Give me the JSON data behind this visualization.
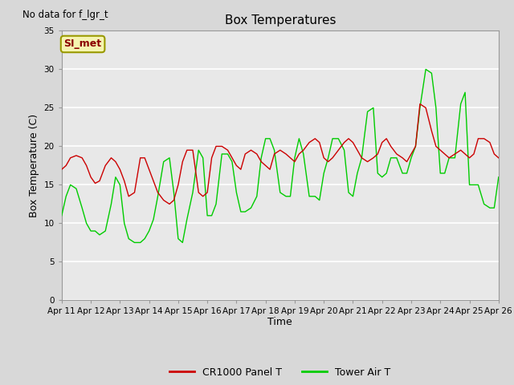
{
  "title": "Box Temperatures",
  "no_data_text": "No data for f_lgr_t",
  "station_label": "SI_met",
  "ylabel": "Box Temperature (C)",
  "xlabel": "Time",
  "ylim": [
    0,
    35
  ],
  "yticks": [
    0,
    5,
    10,
    15,
    20,
    25,
    30,
    35
  ],
  "x_labels": [
    "Apr 11",
    "Apr 12",
    "Apr 13",
    "Apr 14",
    "Apr 15",
    "Apr 16",
    "Apr 17",
    "Apr 18",
    "Apr 19",
    "Apr 20",
    "Apr 21",
    "Apr 22",
    "Apr 23",
    "Apr 24",
    "Apr 25",
    "Apr 26"
  ],
  "fig_bg_color": "#d8d8d8",
  "plot_bg_color": "#e8e8e8",
  "grid_color": "#ffffff",
  "legend_entries": [
    "CR1000 Panel T",
    "Tower Air T"
  ],
  "red_color": "#cc0000",
  "green_color": "#00cc00",
  "line_width": 1.0,
  "red_data_x": [
    0,
    0.15,
    0.3,
    0.5,
    0.7,
    0.85,
    1.0,
    1.15,
    1.3,
    1.5,
    1.7,
    1.85,
    2.0,
    2.15,
    2.3,
    2.5,
    2.7,
    2.85,
    3.0,
    3.15,
    3.3,
    3.5,
    3.7,
    3.85,
    4.0,
    4.15,
    4.3,
    4.5,
    4.7,
    4.85,
    5.0,
    5.15,
    5.3,
    5.5,
    5.7,
    5.85,
    6.0,
    6.15,
    6.3,
    6.5,
    6.7,
    6.85,
    7.0,
    7.15,
    7.3,
    7.5,
    7.7,
    7.85,
    8.0,
    8.15,
    8.3,
    8.5,
    8.7,
    8.85,
    9.0,
    9.15,
    9.3,
    9.5,
    9.7,
    9.85,
    10.0,
    10.15,
    10.3,
    10.5,
    10.7,
    10.85,
    11.0,
    11.15,
    11.3,
    11.5,
    11.7,
    11.85,
    12.0,
    12.15,
    12.3,
    12.5,
    12.7,
    12.85,
    13.0,
    13.15,
    13.3,
    13.5,
    13.7,
    13.85,
    14.0,
    14.15,
    14.3,
    14.5,
    14.7,
    14.85,
    15.0
  ],
  "red_data_y": [
    17.0,
    17.5,
    18.5,
    18.8,
    18.5,
    17.5,
    16.0,
    15.2,
    15.5,
    17.5,
    18.5,
    18.0,
    17.0,
    15.5,
    13.5,
    14.0,
    18.5,
    18.5,
    17.0,
    15.5,
    14.0,
    13.0,
    12.5,
    13.0,
    15.0,
    18.0,
    19.5,
    19.5,
    14.0,
    13.5,
    14.0,
    18.5,
    20.0,
    20.0,
    19.5,
    18.5,
    17.5,
    17.0,
    19.0,
    19.5,
    19.0,
    18.0,
    17.5,
    17.0,
    19.0,
    19.5,
    19.0,
    18.5,
    18.0,
    19.0,
    19.5,
    20.5,
    21.0,
    20.5,
    18.5,
    18.0,
    18.5,
    19.5,
    20.5,
    21.0,
    20.5,
    19.5,
    18.5,
    18.0,
    18.5,
    19.0,
    20.5,
    21.0,
    20.0,
    19.0,
    18.5,
    18.0,
    19.0,
    20.0,
    25.5,
    25.0,
    22.0,
    20.0,
    19.5,
    19.0,
    18.5,
    19.0,
    19.5,
    19.0,
    18.5,
    19.0,
    21.0,
    21.0,
    20.5,
    19.0,
    18.5
  ],
  "green_data_x": [
    0,
    0.15,
    0.3,
    0.5,
    0.7,
    0.85,
    1.0,
    1.15,
    1.3,
    1.5,
    1.7,
    1.85,
    2.0,
    2.15,
    2.3,
    2.5,
    2.7,
    2.85,
    3.0,
    3.15,
    3.3,
    3.5,
    3.7,
    3.85,
    4.0,
    4.15,
    4.3,
    4.5,
    4.7,
    4.85,
    5.0,
    5.15,
    5.3,
    5.5,
    5.7,
    5.85,
    6.0,
    6.15,
    6.3,
    6.5,
    6.7,
    6.85,
    7.0,
    7.15,
    7.3,
    7.5,
    7.7,
    7.85,
    8.0,
    8.15,
    8.3,
    8.5,
    8.7,
    8.85,
    9.0,
    9.15,
    9.3,
    9.5,
    9.7,
    9.85,
    10.0,
    10.15,
    10.3,
    10.5,
    10.7,
    10.85,
    11.0,
    11.15,
    11.3,
    11.5,
    11.7,
    11.85,
    12.0,
    12.15,
    12.3,
    12.5,
    12.7,
    12.85,
    13.0,
    13.15,
    13.3,
    13.5,
    13.7,
    13.85,
    14.0,
    14.15,
    14.3,
    14.5,
    14.7,
    14.85,
    15.0
  ],
  "green_data_y": [
    11.0,
    13.5,
    15.0,
    14.5,
    12.0,
    10.0,
    9.0,
    9.0,
    8.5,
    9.0,
    12.5,
    16.0,
    15.0,
    10.0,
    8.0,
    7.5,
    7.5,
    8.0,
    9.0,
    10.5,
    13.5,
    18.0,
    18.5,
    14.0,
    8.0,
    7.5,
    10.5,
    14.0,
    19.5,
    18.5,
    11.0,
    11.0,
    12.5,
    19.0,
    19.0,
    18.0,
    14.0,
    11.5,
    11.5,
    12.0,
    13.5,
    18.5,
    21.0,
    21.0,
    19.5,
    14.0,
    13.5,
    13.5,
    18.5,
    21.0,
    19.0,
    13.5,
    13.5,
    13.0,
    16.5,
    18.5,
    21.0,
    21.0,
    19.5,
    14.0,
    13.5,
    16.5,
    18.5,
    24.5,
    25.0,
    16.5,
    16.0,
    16.5,
    18.5,
    18.5,
    16.5,
    16.5,
    18.5,
    20.0,
    25.0,
    30.0,
    29.5,
    25.0,
    16.5,
    16.5,
    18.5,
    18.5,
    25.5,
    27.0,
    15.0,
    15.0,
    15.0,
    12.5,
    12.0,
    12.0,
    16.0
  ]
}
